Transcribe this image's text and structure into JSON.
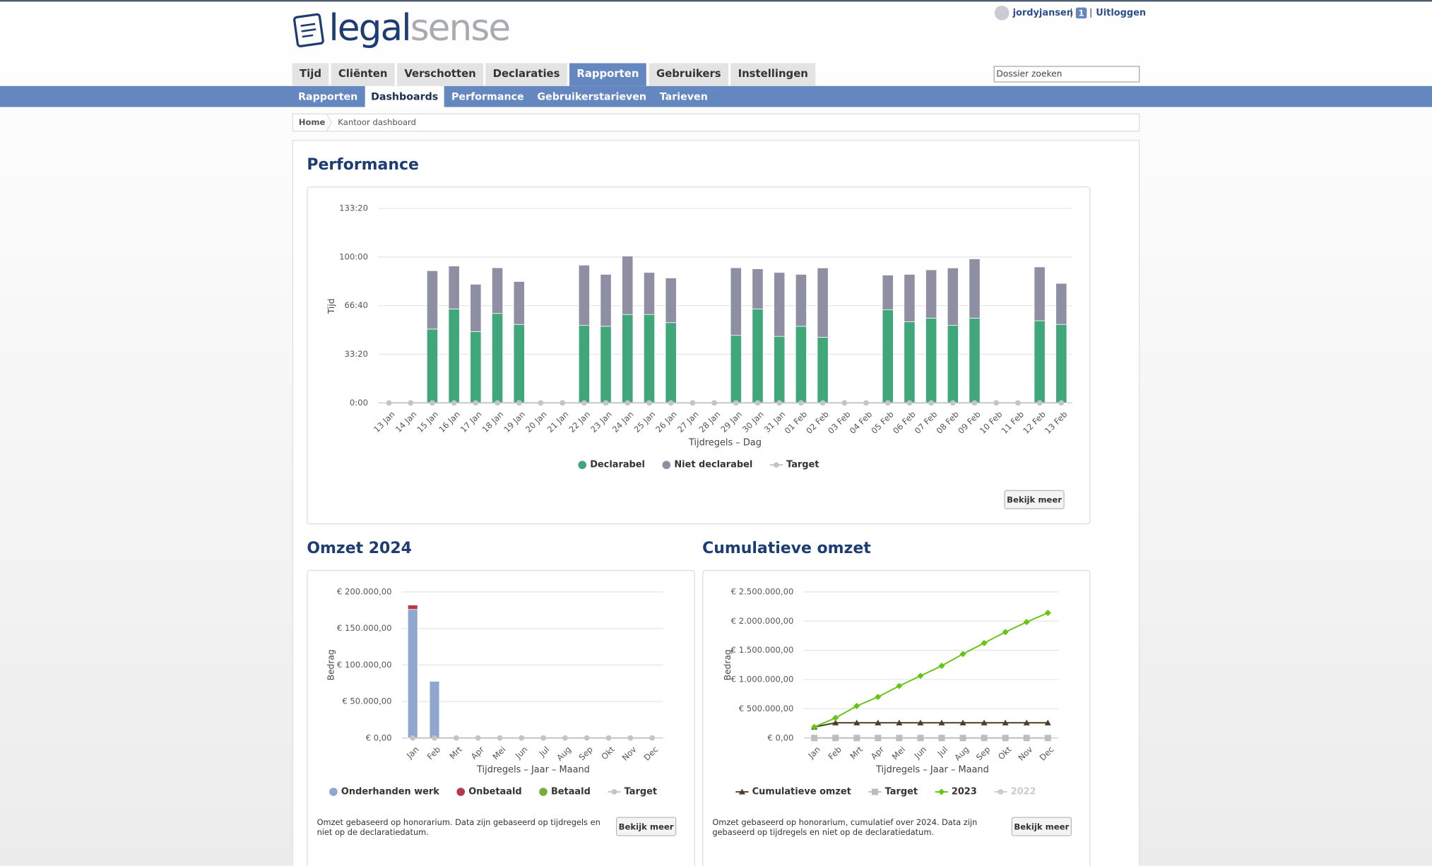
{
  "header": {
    "logo": {
      "part1": "legal",
      "part2": "sense"
    },
    "user": "jordyjansen",
    "badge": "1",
    "logout": "Uitloggen",
    "search_placeholder": "Dossier zoeken"
  },
  "nav": {
    "items": [
      "Tijd",
      "Cliënten",
      "Verschotten",
      "Declaraties",
      "Rapporten",
      "Gebruikers",
      "Instellingen"
    ],
    "active": 4
  },
  "subnav": {
    "items": [
      "Rapporten",
      "Dashboards",
      "Performance",
      "Gebruikerstarieven",
      "Tarieven"
    ],
    "active": 1
  },
  "breadcrumb": [
    "Home",
    "Kantoor dashboard"
  ],
  "chart_data": [
    {
      "type": "bar",
      "title": "Performance",
      "ylabel": "Tijd",
      "xlabel": "Tijdregels – Dag",
      "button": "Bekijk meer",
      "categories": [
        "13 Jan",
        "14 Jan",
        "15 Jan",
        "16 Jan",
        "17 Jan",
        "18 Jan",
        "19 Jan",
        "20 Jan",
        "21 Jan",
        "22 Jan",
        "23 Jan",
        "24 Jan",
        "25 Jan",
        "26 Jan",
        "27 Jan",
        "28 Jan",
        "29 Jan",
        "30 Jan",
        "31 Jan",
        "01 Feb",
        "02 Feb",
        "03 Feb",
        "04 Feb",
        "05 Feb",
        "06 Feb",
        "07 Feb",
        "08 Feb",
        "09 Feb",
        "10 Feb",
        "11 Feb",
        "12 Feb",
        "13 Feb"
      ],
      "series": [
        {
          "name": "Declarabel",
          "color": "#3fa77a",
          "values": [
            0,
            0,
            50.6,
            64.4,
            48.8,
            61.3,
            53.8,
            0,
            0,
            53.1,
            52.5,
            60.6,
            60.6,
            55,
            0,
            0,
            46.3,
            64.4,
            45.6,
            52.5,
            45,
            0,
            0,
            63.8,
            55.6,
            58.1,
            53.1,
            58.1,
            0,
            0,
            56.3,
            53.8
          ]
        },
        {
          "name": "Niet declarabel",
          "color": "#8f8fa3",
          "values": [
            0,
            0,
            40,
            29.4,
            32.5,
            31.3,
            29.4,
            0,
            0,
            41.3,
            35.6,
            40,
            28.8,
            30.6,
            0,
            0,
            46.3,
            27.5,
            43.8,
            35.6,
            47.5,
            0,
            0,
            23.8,
            32.5,
            33.1,
            39.4,
            40.6,
            0,
            0,
            36.9,
            28.1
          ]
        },
        {
          "name": "Target",
          "color": "#c4c4c4",
          "type": "line",
          "marker": "circle",
          "values": [
            0,
            0,
            0,
            0,
            0,
            0,
            0,
            0,
            0,
            0,
            0,
            0,
            0,
            0,
            0,
            0,
            0,
            0,
            0,
            0,
            0,
            0,
            0,
            0,
            0,
            0,
            0,
            0,
            0,
            0,
            0,
            0
          ]
        }
      ],
      "ylim": [
        0,
        133.333
      ],
      "yticks": [
        {
          "value": 0,
          "label": "0:00"
        },
        {
          "value": 33.333,
          "label": "33:20"
        },
        {
          "value": 66.667,
          "label": "66:40"
        },
        {
          "value": 100,
          "label": "100:00"
        },
        {
          "value": 133.333,
          "label": "133:20"
        }
      ],
      "grid": true
    },
    {
      "type": "bar",
      "title": "Omzet 2024",
      "ylabel": "Bedrag",
      "xlabel": "Tijdregels – Jaar – Maand",
      "button": "Bekijk meer",
      "note": [
        "Omzet gebaseerd op honorarium. Data zijn gebaseerd op tijdregels en",
        "niet op de declaratiedatum."
      ],
      "categories": [
        "Jan",
        "Feb",
        "Mrt",
        "Apr",
        "Mei",
        "Jun",
        "Jul",
        "Aug",
        "Sep",
        "Okt",
        "Nov",
        "Dec"
      ],
      "series": [
        {
          "name": "Onderhanden werk",
          "color": "#8fa6d0",
          "values": [
            176000,
            77500,
            0,
            0,
            0,
            0,
            0,
            0,
            0,
            0,
            0,
            0
          ]
        },
        {
          "name": "Onbetaald",
          "color": "#b5394a",
          "values": [
            6000,
            0,
            0,
            0,
            0,
            0,
            0,
            0,
            0,
            0,
            0,
            0
          ]
        },
        {
          "name": "Betaald",
          "color": "#7aab3f",
          "values": [
            0,
            0,
            0,
            0,
            0,
            0,
            0,
            0,
            0,
            0,
            0,
            0
          ]
        },
        {
          "name": "Target",
          "color": "#c4c4c4",
          "type": "line",
          "marker": "circle",
          "values": [
            0,
            0,
            0,
            0,
            0,
            0,
            0,
            0,
            0,
            0,
            0,
            0
          ]
        }
      ],
      "ylim": [
        0,
        200000
      ],
      "yticks": [
        {
          "value": 0,
          "label": "€ 0,00"
        },
        {
          "value": 50000,
          "label": "€ 50.000,00"
        },
        {
          "value": 100000,
          "label": "€ 100.000,00"
        },
        {
          "value": 150000,
          "label": "€ 150.000,00"
        },
        {
          "value": 200000,
          "label": "€ 200.000,00"
        }
      ],
      "grid": true
    },
    {
      "type": "line",
      "title": "Cumulatieve omzet",
      "ylabel": "Bedrag",
      "xlabel": "Tijdregels – Jaar – Maand",
      "button": "Bekijk meer",
      "note": [
        "Omzet gebaseerd op honorarium, cumulatief over 2024. Data zijn",
        "gebaseerd op tijdregels en niet op de declaratiedatum."
      ],
      "categories": [
        "Jan",
        "Feb",
        "Mrt",
        "Apr",
        "Mei",
        "Jun",
        "Jul",
        "Aug",
        "Sep",
        "Okt",
        "Nov",
        "Dec"
      ],
      "series": [
        {
          "name": "Cumulatieve omzet",
          "color": "#4a3f24",
          "marker": "triangle",
          "values": [
            187500,
            260000,
            260000,
            260000,
            260000,
            260000,
            260000,
            260000,
            260000,
            260000,
            260000,
            260000
          ]
        },
        {
          "name": "Target",
          "color": "#bdbdbd",
          "marker": "square",
          "values": [
            0,
            0,
            0,
            0,
            0,
            0,
            0,
            0,
            0,
            0,
            0,
            0
          ]
        },
        {
          "name": "2023",
          "color": "#66c414",
          "marker": "diamond",
          "values": [
            187500,
            343750,
            546900,
            703100,
            890600,
            1062500,
            1234400,
            1437500,
            1625000,
            1812500,
            1984400,
            2140600
          ]
        },
        {
          "name": "2022",
          "color": "#cccccc",
          "marker": "circle",
          "hidden": true,
          "values": [
            null,
            null,
            null,
            null,
            null,
            null,
            null,
            null,
            null,
            null,
            null,
            null
          ]
        }
      ],
      "ylim": [
        0,
        2500000
      ],
      "yticks": [
        {
          "value": 0,
          "label": "€ 0,00"
        },
        {
          "value": 500000,
          "label": "€ 500.000,00"
        },
        {
          "value": 1000000,
          "label": "€ 1.000.000,00"
        },
        {
          "value": 1500000,
          "label": "€ 1.500.000,00"
        },
        {
          "value": 2000000,
          "label": "€ 2.000.000,00"
        },
        {
          "value": 2500000,
          "label": "€ 2.500.000,00"
        }
      ],
      "grid": true
    }
  ]
}
